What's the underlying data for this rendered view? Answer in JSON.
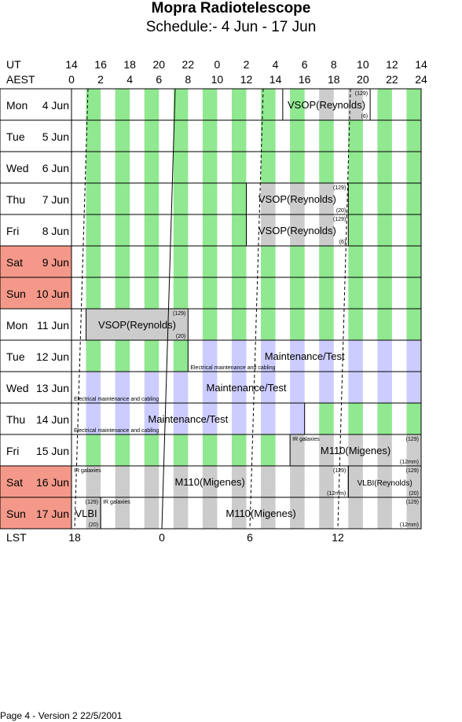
{
  "header": {
    "title": "Mopra Radiotelescope",
    "subtitle": "Schedule:- 4  Jun - 17 Jun"
  },
  "axis": {
    "ut_label": "UT",
    "aest_label": "AEST",
    "lst_label": "LST",
    "ut_ticks": [
      "14",
      "16",
      "18",
      "20",
      "22",
      "0",
      "2",
      "4",
      "6",
      "8",
      "10",
      "12",
      "14"
    ],
    "aest_ticks": [
      "0",
      "2",
      "4",
      "6",
      "8",
      "10",
      "12",
      "14",
      "16",
      "18",
      "20",
      "22",
      "24"
    ],
    "lst_ticks": [
      "18",
      "0",
      "6",
      "12"
    ]
  },
  "colors": {
    "green": "#90e890",
    "grey": "#cccccc",
    "lavender": "#ccccff",
    "weekend": "#f4998a"
  },
  "days": [
    {
      "dow": "Mon",
      "date": "4  Jun",
      "weekend": false
    },
    {
      "dow": "Tue",
      "date": "5  Jun",
      "weekend": false
    },
    {
      "dow": "Wed",
      "date": "6  Jun",
      "weekend": false
    },
    {
      "dow": "Thu",
      "date": "7  Jun",
      "weekend": false
    },
    {
      "dow": "Fri",
      "date": "8  Jun",
      "weekend": false
    },
    {
      "dow": "Sat",
      "date": "9  Jun",
      "weekend": true
    },
    {
      "dow": "Sun",
      "date": "10 Jun",
      "weekend": true
    },
    {
      "dow": "Mon",
      "date": "11 Jun",
      "weekend": false
    },
    {
      "dow": "Tue",
      "date": "12 Jun",
      "weekend": false
    },
    {
      "dow": "Wed",
      "date": "13 Jun",
      "weekend": false
    },
    {
      "dow": "Thu",
      "date": "14 Jun",
      "weekend": false
    },
    {
      "dow": "Fri",
      "date": "15 Jun",
      "weekend": false
    },
    {
      "dow": "Sat",
      "date": "16 Jun",
      "weekend": true
    },
    {
      "dow": "Sun",
      "date": "17 Jun",
      "weekend": true
    }
  ],
  "chart_data": {
    "type": "table",
    "title": "Mopra Radiotelescope",
    "subtitle": "Schedule:- 4  Jun - 17 Jun",
    "aest_range_hours": [
      0,
      24
    ],
    "bookings": [
      {
        "day": 0,
        "start": 14.5,
        "end": 20.5,
        "label": "VSOP(Reynolds)",
        "fill": "white",
        "notes": [
          {
            "text": "(129)",
            "pos": "tr"
          },
          {
            "text": "(6)",
            "pos": "br"
          }
        ]
      },
      {
        "day": 3,
        "start": 12.0,
        "end": 19.0,
        "label": "VSOP(Reynolds)",
        "fill": "white",
        "notes": [
          {
            "text": "(129)",
            "pos": "tr"
          },
          {
            "text": "(20)",
            "pos": "br"
          }
        ]
      },
      {
        "day": 4,
        "start": 12.0,
        "end": 19.0,
        "label": "VSOP(Reynolds)",
        "fill": "white",
        "notes": [
          {
            "text": "(129)",
            "pos": "tr"
          },
          {
            "text": "(6)",
            "pos": "br"
          }
        ]
      },
      {
        "day": 7,
        "start": 1.0,
        "end": 8.0,
        "label": "VSOP(Reynolds)",
        "fill": "grey",
        "notes": [
          {
            "text": "(129)",
            "pos": "tr"
          },
          {
            "text": "(20)",
            "pos": "br"
          }
        ]
      },
      {
        "day": 8,
        "start": 8.0,
        "end": 24.0,
        "label": "Maintenance/Test",
        "fill": "white",
        "notes": [
          {
            "text": "Electrical maintenance and cabling",
            "pos": "bl"
          }
        ]
      },
      {
        "day": 9,
        "start": 0.0,
        "end": 24.0,
        "label": "Maintenance/Test",
        "fill": "white",
        "notes": [
          {
            "text": "Electrical maintenance and cabling",
            "pos": "bl"
          }
        ]
      },
      {
        "day": 10,
        "start": 0.0,
        "end": 16.0,
        "label": "Maintenance/Test",
        "fill": "white",
        "notes": [
          {
            "text": "Electrical maintenance and cabling",
            "pos": "bl"
          }
        ]
      },
      {
        "day": 11,
        "start": 15.0,
        "end": 24.0,
        "label": "M110(Migenes)",
        "fill": "white",
        "notes": [
          {
            "text": "IR galaxies",
            "pos": "tl"
          },
          {
            "text": "(129)",
            "pos": "tr"
          },
          {
            "text": "(12mm)",
            "pos": "br"
          }
        ]
      },
      {
        "day": 12,
        "start": 0.0,
        "end": 19.0,
        "label": "M110(Migenes)",
        "fill": "white",
        "notes": [
          {
            "text": "IR galaxies",
            "pos": "tl"
          },
          {
            "text": "(129)",
            "pos": "tr"
          },
          {
            "text": "(12mm)",
            "pos": "br"
          }
        ]
      },
      {
        "day": 12,
        "start": 19.0,
        "end": 24.0,
        "label": "VLBI(Reynolds)",
        "fill": "white",
        "small": true,
        "notes": [
          {
            "text": "(129)",
            "pos": "tr"
          },
          {
            "text": "(20)",
            "pos": "br"
          }
        ]
      },
      {
        "day": 13,
        "start": 0.0,
        "end": 2.0,
        "label": "VLBI",
        "fill": "white",
        "notes": [
          {
            "text": "(129)",
            "pos": "tr"
          },
          {
            "text": "(20)",
            "pos": "br"
          }
        ]
      },
      {
        "day": 13,
        "start": 2.0,
        "end": 24.0,
        "label": "M110(Migenes)",
        "fill": "white",
        "notes": [
          {
            "text": "IR galaxies",
            "pos": "tl"
          },
          {
            "text": "(129)",
            "pos": "tr"
          },
          {
            "text": "(12mm)",
            "pos": "br"
          }
        ]
      }
    ]
  },
  "footer": {
    "text": "Page 4 - Version 2  22/5/2001"
  }
}
